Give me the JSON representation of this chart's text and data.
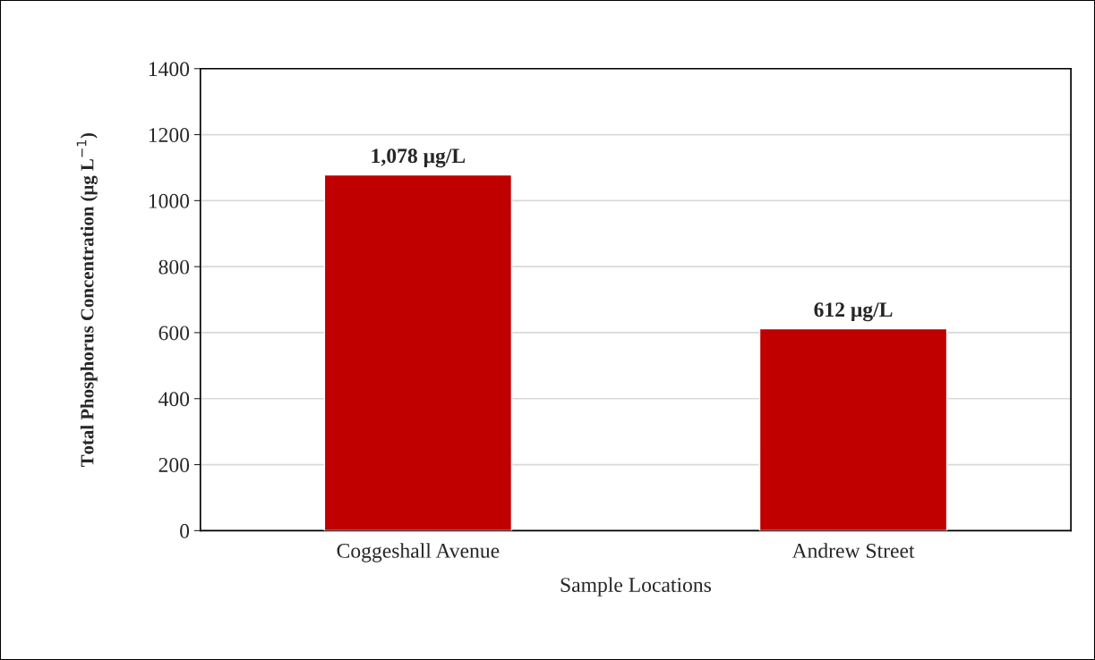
{
  "chart_data": {
    "type": "bar",
    "xlabel": "Sample Locations",
    "ylabel": "Total Phosphorus Concentration (μg L$^{−1}$)",
    "categories": [
      "Coggeshall Avenue",
      "Andrew Street"
    ],
    "series": [
      {
        "color": "#c00000",
        "values": [
          1078,
          612
        ],
        "value_labels": [
          "1,078 μg/L",
          "612 μg/L"
        ]
      }
    ],
    "ylim": [
      0,
      1400
    ],
    "yticks": [
      0,
      200,
      400,
      600,
      800,
      1000,
      1200,
      1400
    ],
    "grid": "y",
    "legend": false
  }
}
